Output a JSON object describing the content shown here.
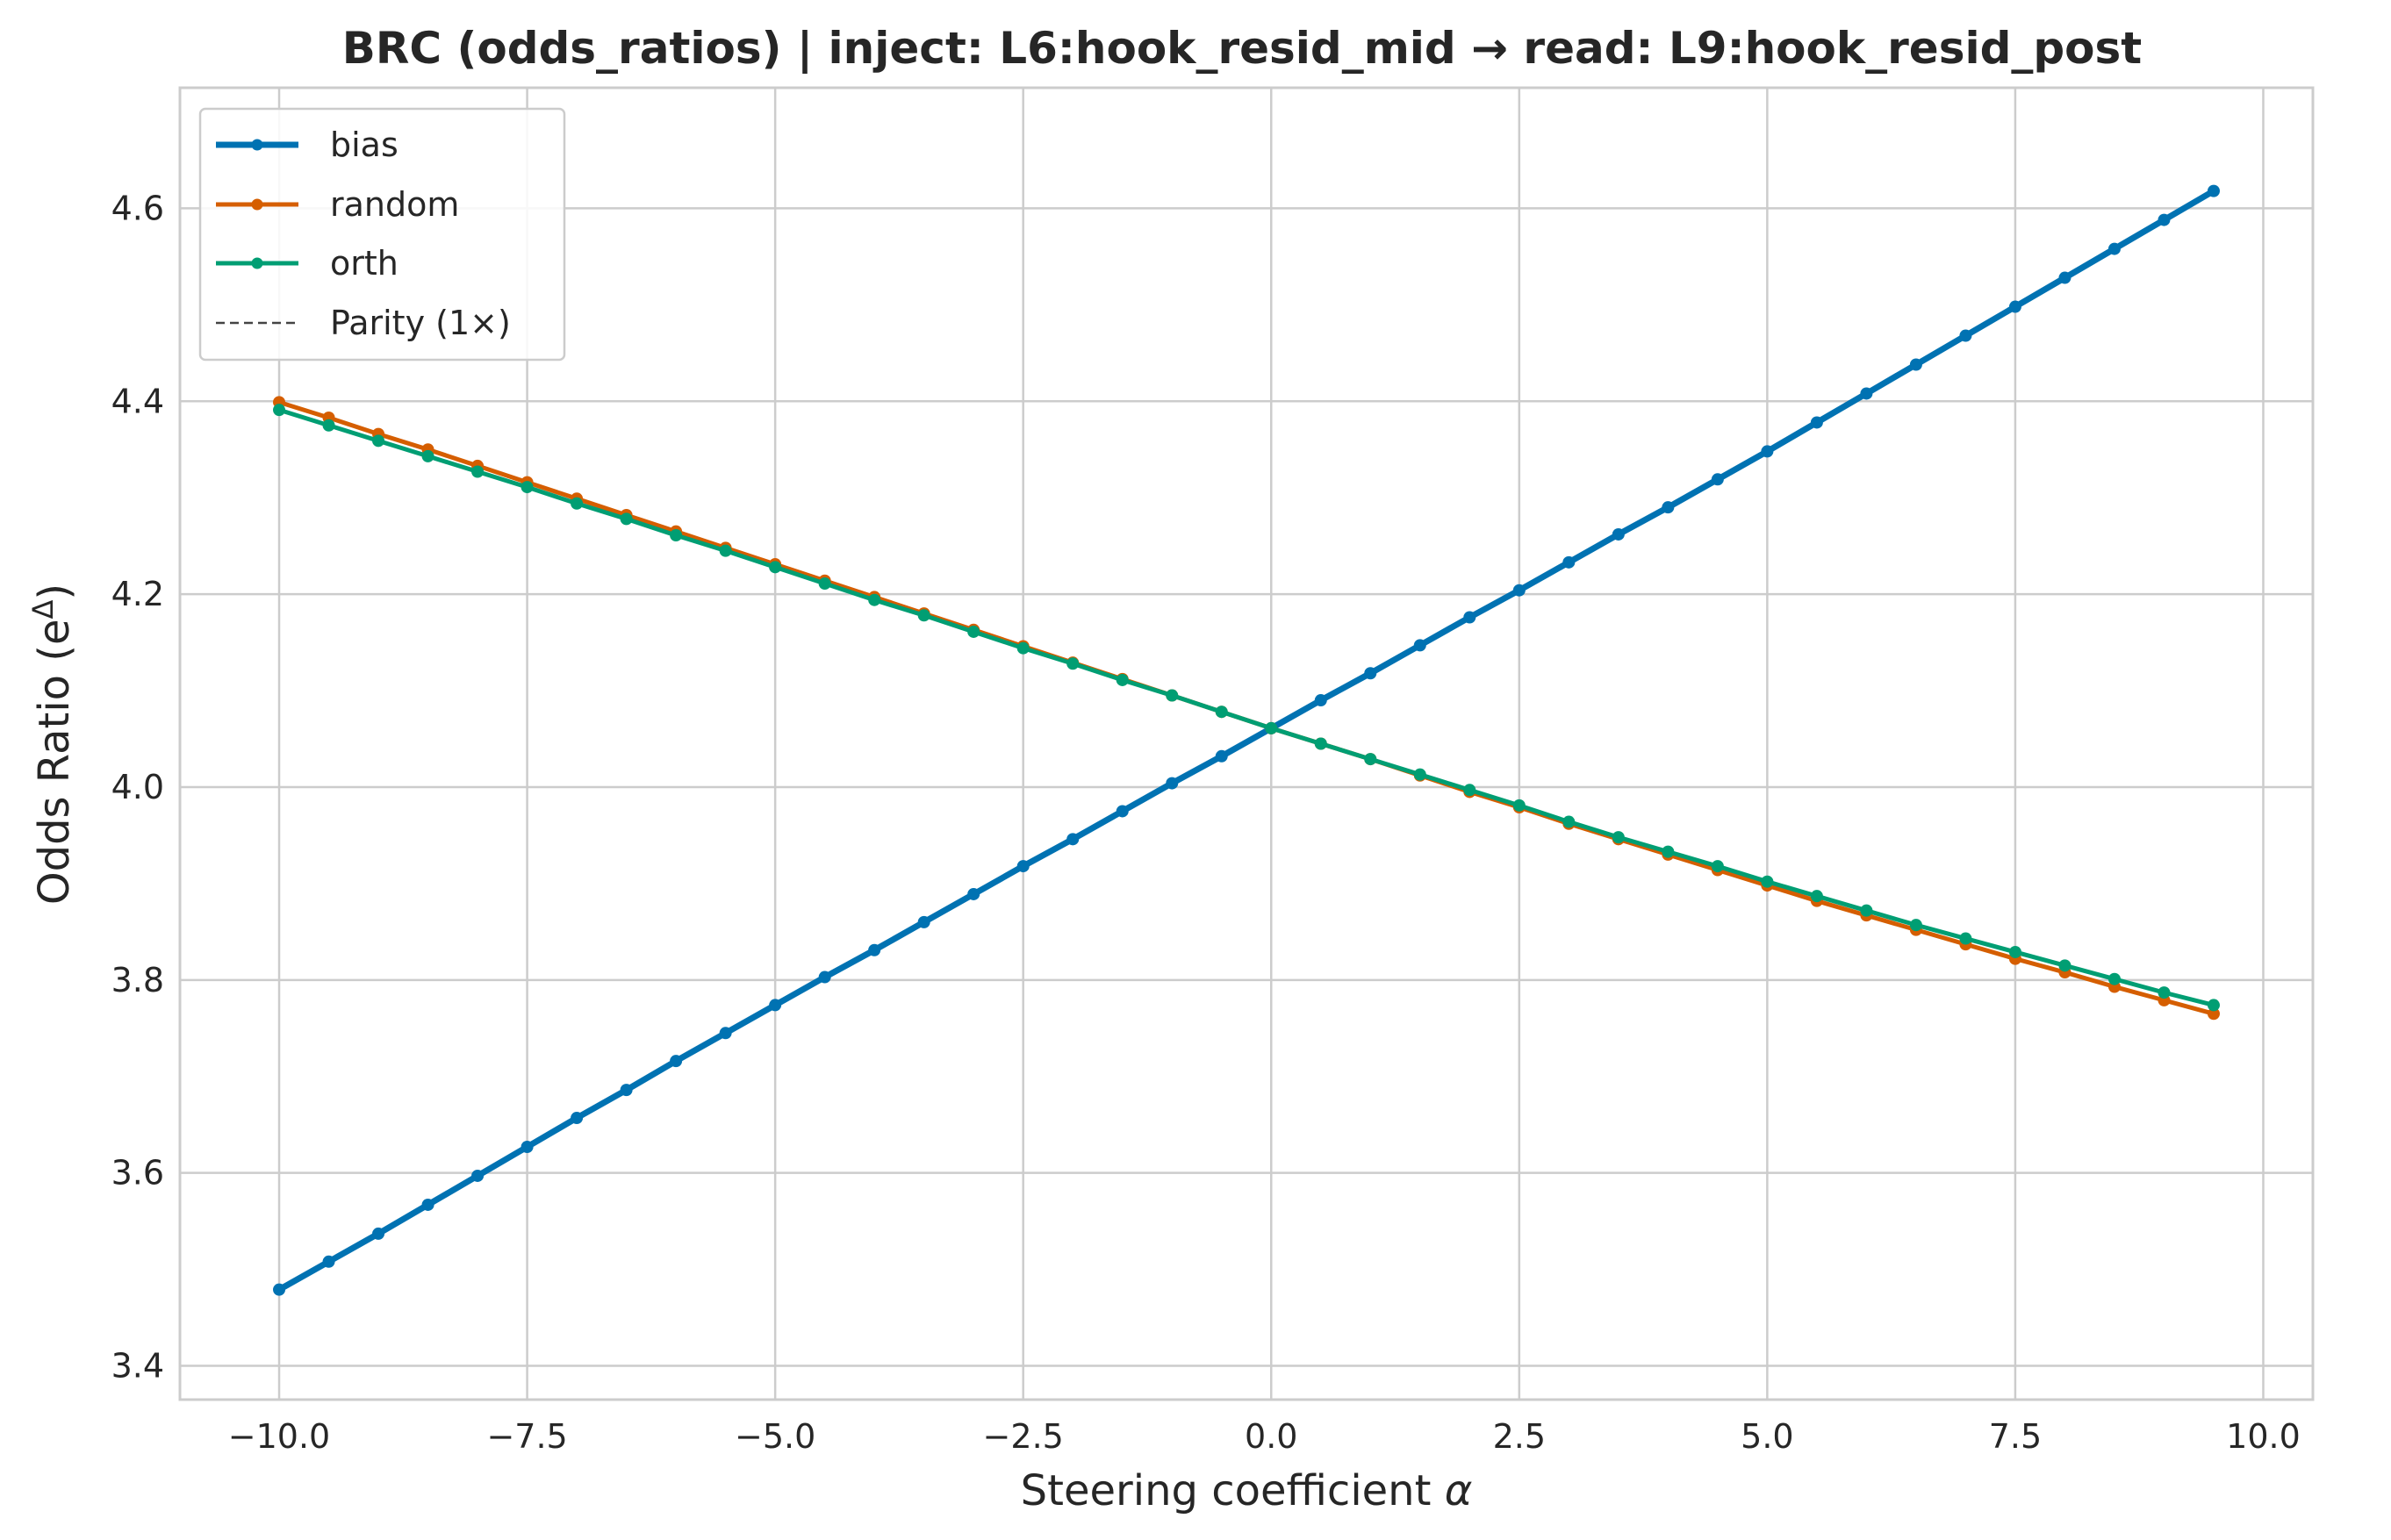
{
  "chart_data": {
    "type": "line",
    "title": "BRC (odds_ratios) | inject: L6:hook_resid_mid → read: L9:hook_resid_post",
    "xlabel": "Steering coefficient",
    "xlabel_symbol": "α",
    "ylabel": "Odds Ratio (e",
    "ylabel_sup": "Δ",
    "ylabel_close": ")",
    "xlim": [
      -11.0,
      10.5
    ],
    "ylim": [
      3.365,
      4.725
    ],
    "xticks": [
      -10.0,
      -7.5,
      -5.0,
      -2.5,
      0.0,
      2.5,
      5.0,
      7.5,
      10.0
    ],
    "xtick_labels": [
      "−10.0",
      "−7.5",
      "−5.0",
      "−2.5",
      "0.0",
      "2.5",
      "5.0",
      "7.5",
      "10.0"
    ],
    "yticks": [
      3.4,
      3.6,
      3.8,
      4.0,
      4.2,
      4.4,
      4.6
    ],
    "ytick_labels": [
      "3.4",
      "3.6",
      "3.8",
      "4.0",
      "4.2",
      "4.4",
      "4.6"
    ],
    "grid": true,
    "legend_position": "top-left",
    "x": [
      -10.0,
      -9.5,
      -9.0,
      -8.5,
      -8.0,
      -7.5,
      -7.0,
      -6.5,
      -6.0,
      -5.5,
      -5.0,
      -4.5,
      -4.0,
      -3.5,
      -3.0,
      -2.5,
      -2.0,
      -1.5,
      -1.0,
      -0.5,
      0.0,
      0.5,
      1.0,
      1.5,
      2.0,
      2.5,
      3.0,
      3.5,
      4.0,
      4.5,
      5.0,
      5.5,
      6.0,
      6.5,
      7.0,
      7.5,
      8.0,
      8.5,
      9.0,
      9.5
    ],
    "series": [
      {
        "name": "bias",
        "color": "#0072B2",
        "values": [
          3.479,
          3.508,
          3.537,
          3.567,
          3.597,
          3.627,
          3.657,
          3.686,
          3.716,
          3.745,
          3.774,
          3.803,
          3.831,
          3.86,
          3.889,
          3.918,
          3.946,
          3.975,
          4.004,
          4.032,
          4.061,
          4.09,
          4.118,
          4.147,
          4.176,
          4.204,
          4.233,
          4.262,
          4.29,
          4.319,
          4.348,
          4.378,
          4.408,
          4.438,
          4.468,
          4.498,
          4.528,
          4.558,
          4.588,
          4.618
        ]
      },
      {
        "name": "random",
        "color": "#D55E00",
        "values": [
          4.399,
          4.383,
          4.366,
          4.35,
          4.333,
          4.316,
          4.299,
          4.282,
          4.265,
          4.248,
          4.231,
          4.214,
          4.197,
          4.18,
          4.163,
          4.146,
          4.129,
          4.112,
          4.095,
          4.078,
          4.061,
          4.045,
          4.029,
          4.012,
          3.995,
          3.979,
          3.962,
          3.946,
          3.93,
          3.914,
          3.898,
          3.882,
          3.867,
          3.852,
          3.837,
          3.822,
          3.808,
          3.793,
          3.779,
          3.765
        ]
      },
      {
        "name": "orth",
        "color": "#009E73",
        "values": [
          4.391,
          4.375,
          4.359,
          4.343,
          4.327,
          4.311,
          4.294,
          4.278,
          4.261,
          4.245,
          4.228,
          4.211,
          4.194,
          4.178,
          4.161,
          4.144,
          4.128,
          4.111,
          4.095,
          4.078,
          4.061,
          4.045,
          4.029,
          4.013,
          3.997,
          3.981,
          3.964,
          3.948,
          3.933,
          3.918,
          3.902,
          3.887,
          3.872,
          3.857,
          3.843,
          3.829,
          3.815,
          3.801,
          3.787,
          3.774
        ]
      }
    ],
    "legend": [
      {
        "label": "bias",
        "color": "#0072B2",
        "style": "solid"
      },
      {
        "label": "random",
        "color": "#D55E00",
        "style": "solid"
      },
      {
        "label": "orth",
        "color": "#009E73",
        "style": "solid"
      },
      {
        "label": "Parity (1×)",
        "color": "#444444",
        "style": "dashed"
      }
    ]
  }
}
